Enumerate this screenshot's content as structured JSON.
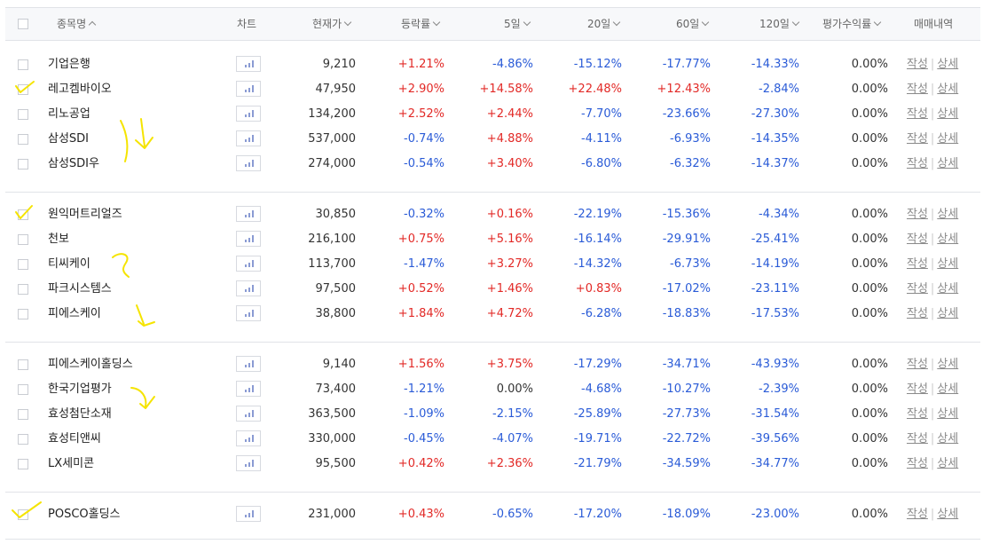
{
  "header": {
    "select_all": "",
    "name": "종목명",
    "chart": "차트",
    "price": "현재가",
    "change": "등락률",
    "d5": "5일",
    "d20": "20일",
    "d60": "60일",
    "d120": "120일",
    "profit": "평가수익률",
    "history": "매매내역"
  },
  "actions": {
    "write": "작성",
    "detail": "상세",
    "sep": "|"
  },
  "colors": {
    "up": "#e22926",
    "down": "#2a5bd7",
    "highlighter": "#f5e400"
  },
  "groups": [
    {
      "rows": [
        {
          "name": "기업은행",
          "price": "9,210",
          "change": "+1.21%",
          "d5": "-4.86%",
          "d20": "-15.12%",
          "d60": "-17.77%",
          "d120": "-14.33%",
          "profit": "0.00%",
          "checked": false
        },
        {
          "name": "레고켐바이오",
          "price": "47,950",
          "change": "+2.90%",
          "d5": "+14.58%",
          "d20": "+22.48%",
          "d60": "+12.43%",
          "d120": "-2.84%",
          "profit": "0.00%",
          "checked": true
        },
        {
          "name": "리노공업",
          "price": "134,200",
          "change": "+2.52%",
          "d5": "+2.44%",
          "d20": "-7.70%",
          "d60": "-23.66%",
          "d120": "-27.30%",
          "profit": "0.00%",
          "checked": false
        },
        {
          "name": "삼성SDI",
          "price": "537,000",
          "change": "-0.74%",
          "d5": "+4.88%",
          "d20": "-4.11%",
          "d60": "-6.93%",
          "d120": "-14.35%",
          "profit": "0.00%",
          "checked": false
        },
        {
          "name": "삼성SDI우",
          "price": "274,000",
          "change": "-0.54%",
          "d5": "+3.40%",
          "d20": "-6.80%",
          "d60": "-6.32%",
          "d120": "-14.37%",
          "profit": "0.00%",
          "checked": false
        }
      ]
    },
    {
      "rows": [
        {
          "name": "원익머트리얼즈",
          "price": "30,850",
          "change": "-0.32%",
          "d5": "+0.16%",
          "d20": "-22.19%",
          "d60": "-15.36%",
          "d120": "-4.34%",
          "profit": "0.00%",
          "checked": true
        },
        {
          "name": "천보",
          "price": "216,100",
          "change": "+0.75%",
          "d5": "+5.16%",
          "d20": "-16.14%",
          "d60": "-29.91%",
          "d120": "-25.41%",
          "profit": "0.00%",
          "checked": false
        },
        {
          "name": "티씨케이",
          "price": "113,700",
          "change": "-1.47%",
          "d5": "+3.27%",
          "d20": "-14.32%",
          "d60": "-6.73%",
          "d120": "-14.19%",
          "profit": "0.00%",
          "checked": false
        },
        {
          "name": "파크시스템스",
          "price": "97,500",
          "change": "+0.52%",
          "d5": "+1.46%",
          "d20": "+0.83%",
          "d60": "-17.02%",
          "d120": "-23.11%",
          "profit": "0.00%",
          "checked": false
        },
        {
          "name": "피에스케이",
          "price": "38,800",
          "change": "+1.84%",
          "d5": "+4.72%",
          "d20": "-6.28%",
          "d60": "-18.83%",
          "d120": "-17.53%",
          "profit": "0.00%",
          "checked": false
        }
      ]
    },
    {
      "rows": [
        {
          "name": "피에스케이홀딩스",
          "price": "9,140",
          "change": "+1.56%",
          "d5": "+3.75%",
          "d20": "-17.29%",
          "d60": "-34.71%",
          "d120": "-43.93%",
          "profit": "0.00%",
          "checked": false
        },
        {
          "name": "한국기업평가",
          "price": "73,400",
          "change": "-1.21%",
          "d5": "0.00%",
          "d20": "-4.68%",
          "d60": "-10.27%",
          "d120": "-2.39%",
          "profit": "0.00%",
          "checked": false
        },
        {
          "name": "효성첨단소재",
          "price": "363,500",
          "change": "-1.09%",
          "d5": "-2.15%",
          "d20": "-25.89%",
          "d60": "-27.73%",
          "d120": "-31.54%",
          "profit": "0.00%",
          "checked": false
        },
        {
          "name": "효성티앤씨",
          "price": "330,000",
          "change": "-0.45%",
          "d5": "-4.07%",
          "d20": "-19.71%",
          "d60": "-22.72%",
          "d120": "-39.56%",
          "profit": "0.00%",
          "checked": false
        },
        {
          "name": "LX세미콘",
          "price": "95,500",
          "change": "+0.42%",
          "d5": "+2.36%",
          "d20": "-21.79%",
          "d60": "-34.59%",
          "d120": "-34.77%",
          "profit": "0.00%",
          "checked": false
        }
      ]
    },
    {
      "rows": [
        {
          "name": "POSCO홀딩스",
          "price": "231,000",
          "change": "+0.43%",
          "d5": "-0.65%",
          "d20": "-17.20%",
          "d60": "-18.09%",
          "d120": "-23.00%",
          "profit": "0.00%",
          "checked": true
        }
      ]
    }
  ]
}
